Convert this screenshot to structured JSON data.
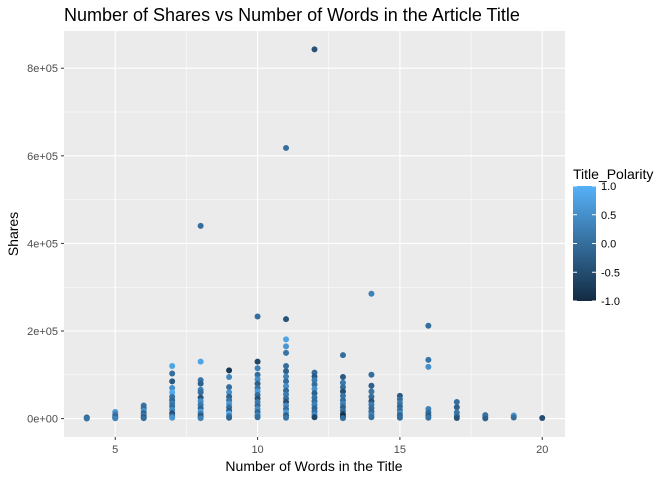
{
  "chart_data": {
    "type": "scatter",
    "title": "Number of Shares vs Number of Words in the Article Title",
    "xlabel": "Number of Words in the Title",
    "ylabel": "Shares",
    "xlim": [
      3.2,
      20.8
    ],
    "ylim": [
      -42000,
      885000
    ],
    "x_ticks": [
      5,
      10,
      15,
      20
    ],
    "x_tick_labels": [
      "5",
      "10",
      "15",
      "20"
    ],
    "y_ticks": [
      0,
      200000,
      400000,
      600000,
      800000
    ],
    "y_tick_labels": [
      "0e+00",
      "2e+05",
      "4e+05",
      "6e+05",
      "8e+05"
    ],
    "grid": true,
    "legend": {
      "title": "Title_Polarity",
      "position": "right",
      "range": [
        -1,
        1
      ],
      "ticks": [
        1,
        0.5,
        0,
        -0.5,
        -1
      ],
      "tick_labels": [
        "1.0",
        "0.5",
        "0.0",
        "-0.5",
        "-1.0"
      ],
      "color_low": "#132b43",
      "color_high": "#56b1f7"
    },
    "colors": {
      "panel_background": "#ebebeb",
      "grid_major": "#ffffff",
      "axis_text": "#4d4d4d"
    },
    "points": [
      {
        "x": 4,
        "y": 800,
        "polarity": 0.0
      },
      {
        "x": 4,
        "y": 2500,
        "polarity": -0.3
      },
      {
        "x": 4,
        "y": 300,
        "polarity": 0.1
      },
      {
        "x": 5,
        "y": 15000,
        "polarity": 0.6
      },
      {
        "x": 5,
        "y": 9000,
        "polarity": 0.2
      },
      {
        "x": 5,
        "y": 5000,
        "polarity": 0.0
      },
      {
        "x": 5,
        "y": 2000,
        "polarity": -0.4
      },
      {
        "x": 5,
        "y": 800,
        "polarity": 0.3
      },
      {
        "x": 6,
        "y": 30000,
        "polarity": 0.1
      },
      {
        "x": 6,
        "y": 24000,
        "polarity": 0.0
      },
      {
        "x": 6,
        "y": 18000,
        "polarity": 0.5
      },
      {
        "x": 6,
        "y": 12000,
        "polarity": -0.2
      },
      {
        "x": 6,
        "y": 7000,
        "polarity": 0.3
      },
      {
        "x": 6,
        "y": 3000,
        "polarity": -0.6
      },
      {
        "x": 6,
        "y": 1000,
        "polarity": 0.0
      },
      {
        "x": 7,
        "y": 120000,
        "polarity": 0.8
      },
      {
        "x": 7,
        "y": 103000,
        "polarity": 0.0
      },
      {
        "x": 7,
        "y": 85000,
        "polarity": -0.3
      },
      {
        "x": 7,
        "y": 70000,
        "polarity": 0.5
      },
      {
        "x": 7,
        "y": 60000,
        "polarity": 0.9
      },
      {
        "x": 7,
        "y": 50000,
        "polarity": 0.1
      },
      {
        "x": 7,
        "y": 42000,
        "polarity": -0.1
      },
      {
        "x": 7,
        "y": 35000,
        "polarity": 0.2
      },
      {
        "x": 7,
        "y": 28000,
        "polarity": 0.0
      },
      {
        "x": 7,
        "y": 20000,
        "polarity": 0.4
      },
      {
        "x": 7,
        "y": 12000,
        "polarity": -0.5
      },
      {
        "x": 7,
        "y": 6000,
        "polarity": 0.0
      },
      {
        "x": 7,
        "y": 2000,
        "polarity": 0.6
      },
      {
        "x": 8,
        "y": 440000,
        "polarity": 0.0
      },
      {
        "x": 8,
        "y": 130000,
        "polarity": 0.8
      },
      {
        "x": 8,
        "y": 88000,
        "polarity": 0.1
      },
      {
        "x": 8,
        "y": 80000,
        "polarity": -0.2
      },
      {
        "x": 8,
        "y": 66000,
        "polarity": 0.3
      },
      {
        "x": 8,
        "y": 60000,
        "polarity": 0.0
      },
      {
        "x": 8,
        "y": 48000,
        "polarity": -0.4
      },
      {
        "x": 8,
        "y": 40000,
        "polarity": 0.5
      },
      {
        "x": 8,
        "y": 32000,
        "polarity": 0.2
      },
      {
        "x": 8,
        "y": 24000,
        "polarity": -0.1
      },
      {
        "x": 8,
        "y": 16000,
        "polarity": 0.7
      },
      {
        "x": 8,
        "y": 10000,
        "polarity": 0.0
      },
      {
        "x": 8,
        "y": 4000,
        "polarity": -0.6
      },
      {
        "x": 8,
        "y": 1000,
        "polarity": 0.3
      },
      {
        "x": 9,
        "y": 110000,
        "polarity": -0.8
      },
      {
        "x": 9,
        "y": 95000,
        "polarity": 0.4
      },
      {
        "x": 9,
        "y": 72000,
        "polarity": 0.0
      },
      {
        "x": 9,
        "y": 60000,
        "polarity": 0.5
      },
      {
        "x": 9,
        "y": 50000,
        "polarity": -0.2
      },
      {
        "x": 9,
        "y": 42000,
        "polarity": 0.1
      },
      {
        "x": 9,
        "y": 34000,
        "polarity": 0.6
      },
      {
        "x": 9,
        "y": 26000,
        "polarity": 0.0
      },
      {
        "x": 9,
        "y": 18000,
        "polarity": -0.3
      },
      {
        "x": 9,
        "y": 12000,
        "polarity": 0.9
      },
      {
        "x": 9,
        "y": 6000,
        "polarity": 0.2
      },
      {
        "x": 9,
        "y": 2000,
        "polarity": -0.1
      },
      {
        "x": 10,
        "y": 233000,
        "polarity": 0.0
      },
      {
        "x": 10,
        "y": 130000,
        "polarity": -0.6
      },
      {
        "x": 10,
        "y": 115000,
        "polarity": 0.3
      },
      {
        "x": 10,
        "y": 100000,
        "polarity": 0.0
      },
      {
        "x": 10,
        "y": 90000,
        "polarity": 0.5
      },
      {
        "x": 10,
        "y": 80000,
        "polarity": -0.2
      },
      {
        "x": 10,
        "y": 70000,
        "polarity": 0.1
      },
      {
        "x": 10,
        "y": 62000,
        "polarity": 0.7
      },
      {
        "x": 10,
        "y": 54000,
        "polarity": 0.0
      },
      {
        "x": 10,
        "y": 46000,
        "polarity": -0.4
      },
      {
        "x": 10,
        "y": 38000,
        "polarity": 0.2
      },
      {
        "x": 10,
        "y": 30000,
        "polarity": 0.0
      },
      {
        "x": 10,
        "y": 22000,
        "polarity": 0.5
      },
      {
        "x": 10,
        "y": 15000,
        "polarity": -0.1
      },
      {
        "x": 10,
        "y": 8000,
        "polarity": 0.3
      },
      {
        "x": 10,
        "y": 3000,
        "polarity": 0.0
      },
      {
        "x": 11,
        "y": 618000,
        "polarity": 0.0
      },
      {
        "x": 11,
        "y": 227000,
        "polarity": -0.4
      },
      {
        "x": 11,
        "y": 181000,
        "polarity": 0.8
      },
      {
        "x": 11,
        "y": 165000,
        "polarity": 0.6
      },
      {
        "x": 11,
        "y": 150000,
        "polarity": 0.1
      },
      {
        "x": 11,
        "y": 120000,
        "polarity": 0.0
      },
      {
        "x": 11,
        "y": 108000,
        "polarity": -0.2
      },
      {
        "x": 11,
        "y": 96000,
        "polarity": 0.3
      },
      {
        "x": 11,
        "y": 85000,
        "polarity": 0.0
      },
      {
        "x": 11,
        "y": 74000,
        "polarity": 0.5
      },
      {
        "x": 11,
        "y": 64000,
        "polarity": -0.1
      },
      {
        "x": 11,
        "y": 55000,
        "polarity": 0.2
      },
      {
        "x": 11,
        "y": 46000,
        "polarity": 0.0
      },
      {
        "x": 11,
        "y": 38000,
        "polarity": -0.5
      },
      {
        "x": 11,
        "y": 30000,
        "polarity": 0.4
      },
      {
        "x": 11,
        "y": 22000,
        "polarity": 0.0
      },
      {
        "x": 11,
        "y": 14000,
        "polarity": 0.6
      },
      {
        "x": 11,
        "y": 7000,
        "polarity": -0.3
      },
      {
        "x": 11,
        "y": 2000,
        "polarity": 0.1
      },
      {
        "x": 12,
        "y": 843000,
        "polarity": -0.4
      },
      {
        "x": 12,
        "y": 105000,
        "polarity": 0.0
      },
      {
        "x": 12,
        "y": 96000,
        "polarity": -0.3
      },
      {
        "x": 12,
        "y": 88000,
        "polarity": 0.2
      },
      {
        "x": 12,
        "y": 78000,
        "polarity": 0.0
      },
      {
        "x": 12,
        "y": 68000,
        "polarity": 0.5
      },
      {
        "x": 12,
        "y": 58000,
        "polarity": -0.2
      },
      {
        "x": 12,
        "y": 48000,
        "polarity": 0.1
      },
      {
        "x": 12,
        "y": 40000,
        "polarity": 0.0
      },
      {
        "x": 12,
        "y": 32000,
        "polarity": 0.3
      },
      {
        "x": 12,
        "y": 24000,
        "polarity": -0.1
      },
      {
        "x": 12,
        "y": 16000,
        "polarity": 0.0
      },
      {
        "x": 12,
        "y": 9000,
        "polarity": 0.4
      },
      {
        "x": 12,
        "y": 3000,
        "polarity": -0.6
      },
      {
        "x": 13,
        "y": 145000,
        "polarity": 0.0
      },
      {
        "x": 13,
        "y": 95000,
        "polarity": -0.3
      },
      {
        "x": 13,
        "y": 82000,
        "polarity": 0.2
      },
      {
        "x": 13,
        "y": 72000,
        "polarity": 0.0
      },
      {
        "x": 13,
        "y": 62000,
        "polarity": -0.5
      },
      {
        "x": 13,
        "y": 52000,
        "polarity": 0.1
      },
      {
        "x": 13,
        "y": 42000,
        "polarity": 0.0
      },
      {
        "x": 13,
        "y": 34000,
        "polarity": 0.3
      },
      {
        "x": 13,
        "y": 26000,
        "polarity": -0.2
      },
      {
        "x": 13,
        "y": 18000,
        "polarity": 0.0
      },
      {
        "x": 13,
        "y": 10000,
        "polarity": -0.8
      },
      {
        "x": 13,
        "y": 4000,
        "polarity": -1.0
      },
      {
        "x": 13,
        "y": 1000,
        "polarity": 0.0
      },
      {
        "x": 14,
        "y": 285000,
        "polarity": 0.3
      },
      {
        "x": 14,
        "y": 100000,
        "polarity": 0.0
      },
      {
        "x": 14,
        "y": 75000,
        "polarity": -0.2
      },
      {
        "x": 14,
        "y": 62000,
        "polarity": 0.1
      },
      {
        "x": 14,
        "y": 50000,
        "polarity": 0.0
      },
      {
        "x": 14,
        "y": 40000,
        "polarity": -0.4
      },
      {
        "x": 14,
        "y": 32000,
        "polarity": 0.2
      },
      {
        "x": 14,
        "y": 24000,
        "polarity": 0.0
      },
      {
        "x": 14,
        "y": 16000,
        "polarity": -0.1
      },
      {
        "x": 14,
        "y": 9000,
        "polarity": 0.3
      },
      {
        "x": 14,
        "y": 3000,
        "polarity": 0.0
      },
      {
        "x": 15,
        "y": 52000,
        "polarity": -0.3
      },
      {
        "x": 15,
        "y": 44000,
        "polarity": 0.0
      },
      {
        "x": 15,
        "y": 36000,
        "polarity": 0.2
      },
      {
        "x": 15,
        "y": 28000,
        "polarity": -0.1
      },
      {
        "x": 15,
        "y": 20000,
        "polarity": 0.0
      },
      {
        "x": 15,
        "y": 13000,
        "polarity": 0.4
      },
      {
        "x": 15,
        "y": 7000,
        "polarity": -0.2
      },
      {
        "x": 15,
        "y": 2000,
        "polarity": 0.0
      },
      {
        "x": 16,
        "y": 212000,
        "polarity": 0.0
      },
      {
        "x": 16,
        "y": 134000,
        "polarity": 0.1
      },
      {
        "x": 16,
        "y": 118000,
        "polarity": 0.5
      },
      {
        "x": 16,
        "y": 22000,
        "polarity": 0.3
      },
      {
        "x": 16,
        "y": 14000,
        "polarity": 0.0
      },
      {
        "x": 16,
        "y": 7000,
        "polarity": -0.3
      },
      {
        "x": 16,
        "y": 2000,
        "polarity": 0.1
      },
      {
        "x": 17,
        "y": 38000,
        "polarity": 0.0
      },
      {
        "x": 17,
        "y": 26000,
        "polarity": -0.2
      },
      {
        "x": 17,
        "y": 14000,
        "polarity": 0.1
      },
      {
        "x": 17,
        "y": 6000,
        "polarity": 0.0
      },
      {
        "x": 17,
        "y": 1500,
        "polarity": -0.4
      },
      {
        "x": 18,
        "y": 8000,
        "polarity": 0.0
      },
      {
        "x": 18,
        "y": 3000,
        "polarity": 0.2
      },
      {
        "x": 18,
        "y": 500,
        "polarity": -0.2
      },
      {
        "x": 19,
        "y": 7000,
        "polarity": 0.6
      },
      {
        "x": 19,
        "y": 2500,
        "polarity": 0.0
      },
      {
        "x": 20,
        "y": 1500,
        "polarity": -0.5
      }
    ]
  }
}
